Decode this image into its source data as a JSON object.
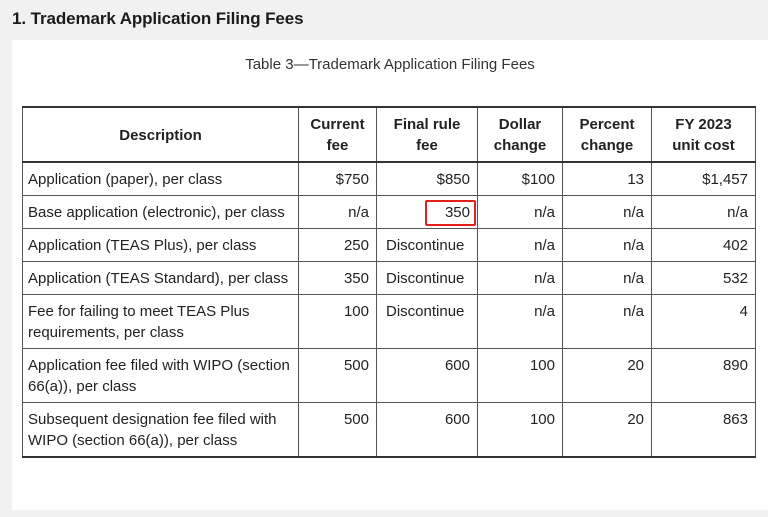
{
  "heading": "1. Trademark Application Filing Fees",
  "caption": "Table 3—Trademark Application Filing Fees",
  "columns": {
    "description": "Description",
    "current_fee": [
      "Current",
      "fee"
    ],
    "final_rule_fee": [
      "Final rule",
      "fee"
    ],
    "dollar_change": [
      "Dollar",
      "change"
    ],
    "percent_change": [
      "Percent",
      "change"
    ],
    "unit_cost": [
      "FY 2023",
      "unit cost"
    ]
  },
  "rows": [
    {
      "description": "Application (paper), per class",
      "current_fee": "$750",
      "final_rule_fee": "$850",
      "dollar_change": "$100",
      "percent_change": "13",
      "unit_cost": "$1,457"
    },
    {
      "description": "Base application (electronic), per class",
      "current_fee": "n/a",
      "final_rule_fee": "350",
      "dollar_change": "n/a",
      "percent_change": "n/a",
      "unit_cost": "n/a"
    },
    {
      "description": "Application (TEAS Plus), per class",
      "current_fee": "250",
      "final_rule_fee": "Discontinue",
      "dollar_change": "n/a",
      "percent_change": "n/a",
      "unit_cost": "402"
    },
    {
      "description": "Application (TEAS Standard), per class",
      "current_fee": "350",
      "final_rule_fee": "Discontinue",
      "dollar_change": "n/a",
      "percent_change": "n/a",
      "unit_cost": "532"
    },
    {
      "description": "Fee for failing to meet TEAS Plus requirements, per class",
      "current_fee": "100",
      "final_rule_fee": "Discontinue",
      "dollar_change": "n/a",
      "percent_change": "n/a",
      "unit_cost": "4"
    },
    {
      "description": "Application fee filed with WIPO (section 66(a)), per class",
      "current_fee": "500",
      "final_rule_fee": "600",
      "dollar_change": "100",
      "percent_change": "20",
      "unit_cost": "890"
    },
    {
      "description": "Subsequent designation fee filed with WIPO (section 66(a)), per class",
      "current_fee": "500",
      "final_rule_fee": "600",
      "dollar_change": "100",
      "percent_change": "20",
      "unit_cost": "863"
    }
  ],
  "highlight": {
    "row": 1,
    "column": "final_rule_fee",
    "color": "#e0201c"
  }
}
